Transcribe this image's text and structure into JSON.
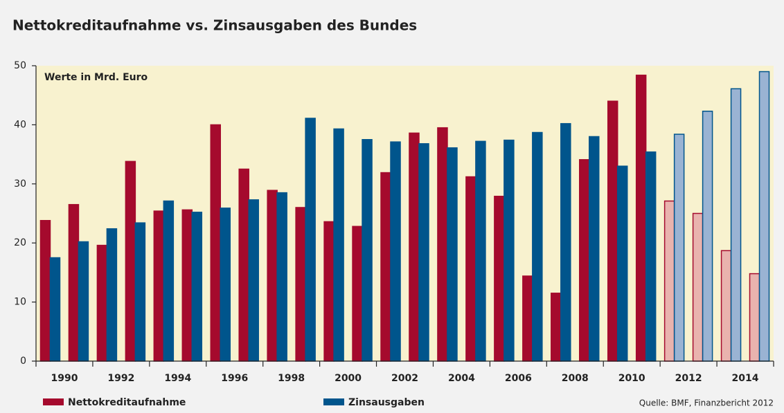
{
  "chart_data": {
    "type": "bar",
    "title": "Nettokreditaufnahme vs. Zinsausgaben des Bundes",
    "annotation": "Werte in Mrd. Euro",
    "source": "Quelle: BMF, Finanzbericht 2012",
    "categories": [
      "1990",
      null,
      "1992",
      null,
      "1994",
      null,
      "1996",
      null,
      "1998",
      null,
      "2000",
      null,
      "2002",
      null,
      "2004",
      null,
      "2006",
      null,
      "2008",
      null,
      "2010",
      null,
      "2012",
      null,
      "2014",
      null
    ],
    "series": [
      {
        "name": "Nettokreditaufnahme",
        "color": "#a50a2d",
        "colors": [
          "#a50a2d",
          "#a50a2d",
          "#a50a2d",
          "#a50a2d",
          "#a50a2d",
          "#a50a2d",
          "#a50a2d",
          "#a50a2d",
          "#a50a2d",
          "#a50a2d",
          "#a50a2d",
          "#a50a2d",
          "#a50a2d",
          "#a50a2d",
          "#a50a2d",
          "#a50a2d",
          "#a50a2d",
          "#a50a2d",
          "#a50a2d",
          "#a50a2d",
          "#a50a2d",
          "#a50a2d",
          "#e9b3ae",
          "#e9b3ae",
          "#e9b3ae",
          "#e9b3ae"
        ],
        "values": [
          23.8,
          26.5,
          19.6,
          33.8,
          25.4,
          25.6,
          40.0,
          32.5,
          28.9,
          26.0,
          23.6,
          22.8,
          31.9,
          38.6,
          39.5,
          31.2,
          27.9,
          14.4,
          11.5,
          34.1,
          44.0,
          48.4,
          27.1,
          25.0,
          18.7,
          14.8
        ]
      },
      {
        "name": "Zinsausgaben",
        "color": "#00558c",
        "colors": [
          "#00558c",
          "#00558c",
          "#00558c",
          "#00558c",
          "#00558c",
          "#00558c",
          "#00558c",
          "#00558c",
          "#00558c",
          "#00558c",
          "#00558c",
          "#00558c",
          "#00558c",
          "#00558c",
          "#00558c",
          "#00558c",
          "#00558c",
          "#00558c",
          "#00558c",
          "#00558c",
          "#00558c",
          "#00558c",
          "#9ab3d3",
          "#9ab3d3",
          "#9ab3d3",
          "#9ab3d3"
        ],
        "values": [
          17.5,
          20.2,
          22.4,
          23.4,
          27.1,
          25.2,
          25.9,
          27.3,
          28.5,
          41.1,
          39.3,
          37.5,
          37.1,
          36.8,
          36.1,
          37.2,
          37.4,
          38.7,
          40.2,
          38.0,
          33.0,
          35.4,
          38.4,
          42.3,
          46.1,
          49.0
        ]
      }
    ],
    "ylim": [
      0,
      50
    ],
    "yticks": [
      0,
      10,
      20,
      30,
      40,
      50
    ],
    "grid": false,
    "plot_background": "#f8f2cf"
  }
}
